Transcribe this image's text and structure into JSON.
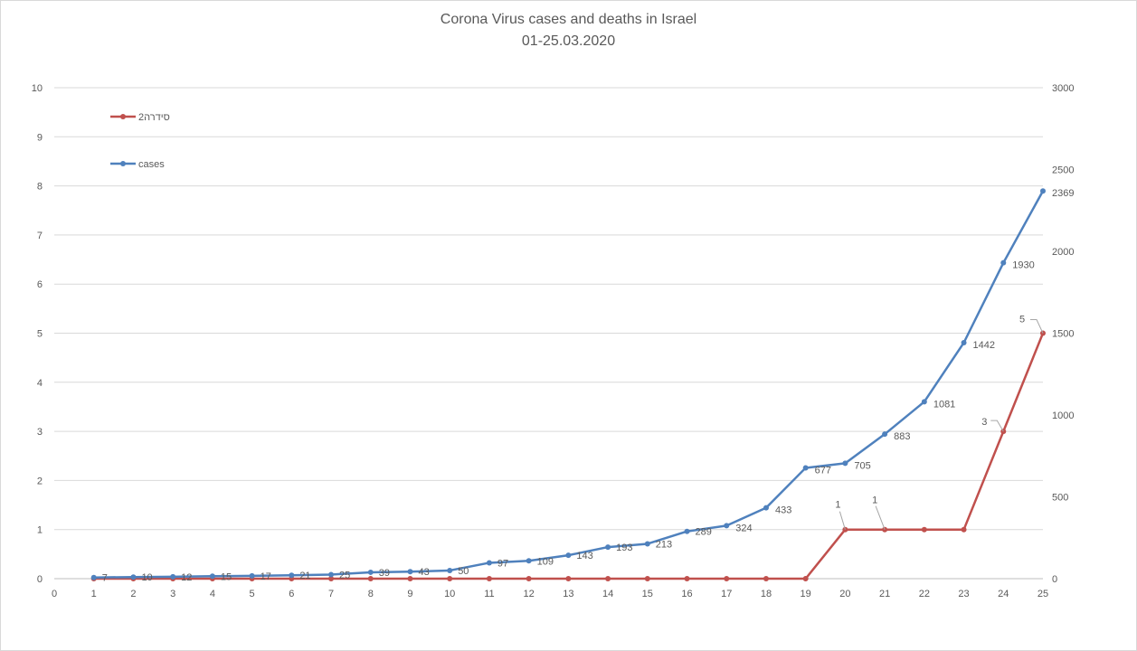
{
  "chart_data": {
    "type": "line",
    "title": "Corona Virus cases and deaths in  Israel",
    "subtitle": "01-25.03.2020",
    "x": [
      1,
      2,
      3,
      4,
      5,
      6,
      7,
      8,
      9,
      10,
      11,
      12,
      13,
      14,
      15,
      16,
      17,
      18,
      19,
      20,
      21,
      22,
      23,
      24,
      25
    ],
    "x_axis_ticks": [
      0,
      1,
      2,
      3,
      4,
      5,
      6,
      7,
      8,
      9,
      10,
      11,
      12,
      13,
      14,
      15,
      16,
      17,
      18,
      19,
      20,
      21,
      22,
      23,
      24,
      25
    ],
    "xlim": [
      0,
      25
    ],
    "y_left": {
      "ticks": [
        0,
        1,
        2,
        3,
        4,
        5,
        6,
        7,
        8,
        9,
        10
      ],
      "lim": [
        0,
        10
      ]
    },
    "y_right": {
      "ticks": [
        0,
        500,
        1000,
        1500,
        2000,
        2500,
        3000
      ],
      "lim": [
        0,
        3000
      ]
    },
    "grid": true,
    "legend_position": "top-left",
    "series": [
      {
        "name": "סידרה2",
        "axis": "left",
        "color": "#C0504D",
        "values": [
          0,
          0,
          0,
          0,
          0,
          0,
          0,
          0,
          0,
          0,
          0,
          0,
          0,
          0,
          0,
          0,
          0,
          0,
          0,
          1,
          1,
          1,
          1,
          3,
          5
        ],
        "labels": [
          {
            "x": 20,
            "text": "1"
          },
          {
            "x": 21,
            "text": "1"
          },
          {
            "x": 24,
            "text": "3"
          },
          {
            "x": 25,
            "text": "5"
          }
        ]
      },
      {
        "name": "cases",
        "axis": "right",
        "color": "#4F81BD",
        "values": [
          7,
          10,
          12,
          15,
          17,
          21,
          25,
          39,
          43,
          50,
          97,
          109,
          143,
          193,
          213,
          289,
          324,
          433,
          677,
          705,
          883,
          1081,
          1442,
          1930,
          2369
        ],
        "labels": [
          "7",
          "10",
          "12",
          "15",
          "17",
          "21",
          "25",
          "39",
          "43",
          "50",
          "97",
          "109",
          "143",
          "193",
          "213",
          "289",
          "324",
          "433",
          "677",
          "705",
          "883",
          "1081",
          "1442",
          "1930",
          "2369"
        ]
      }
    ]
  }
}
